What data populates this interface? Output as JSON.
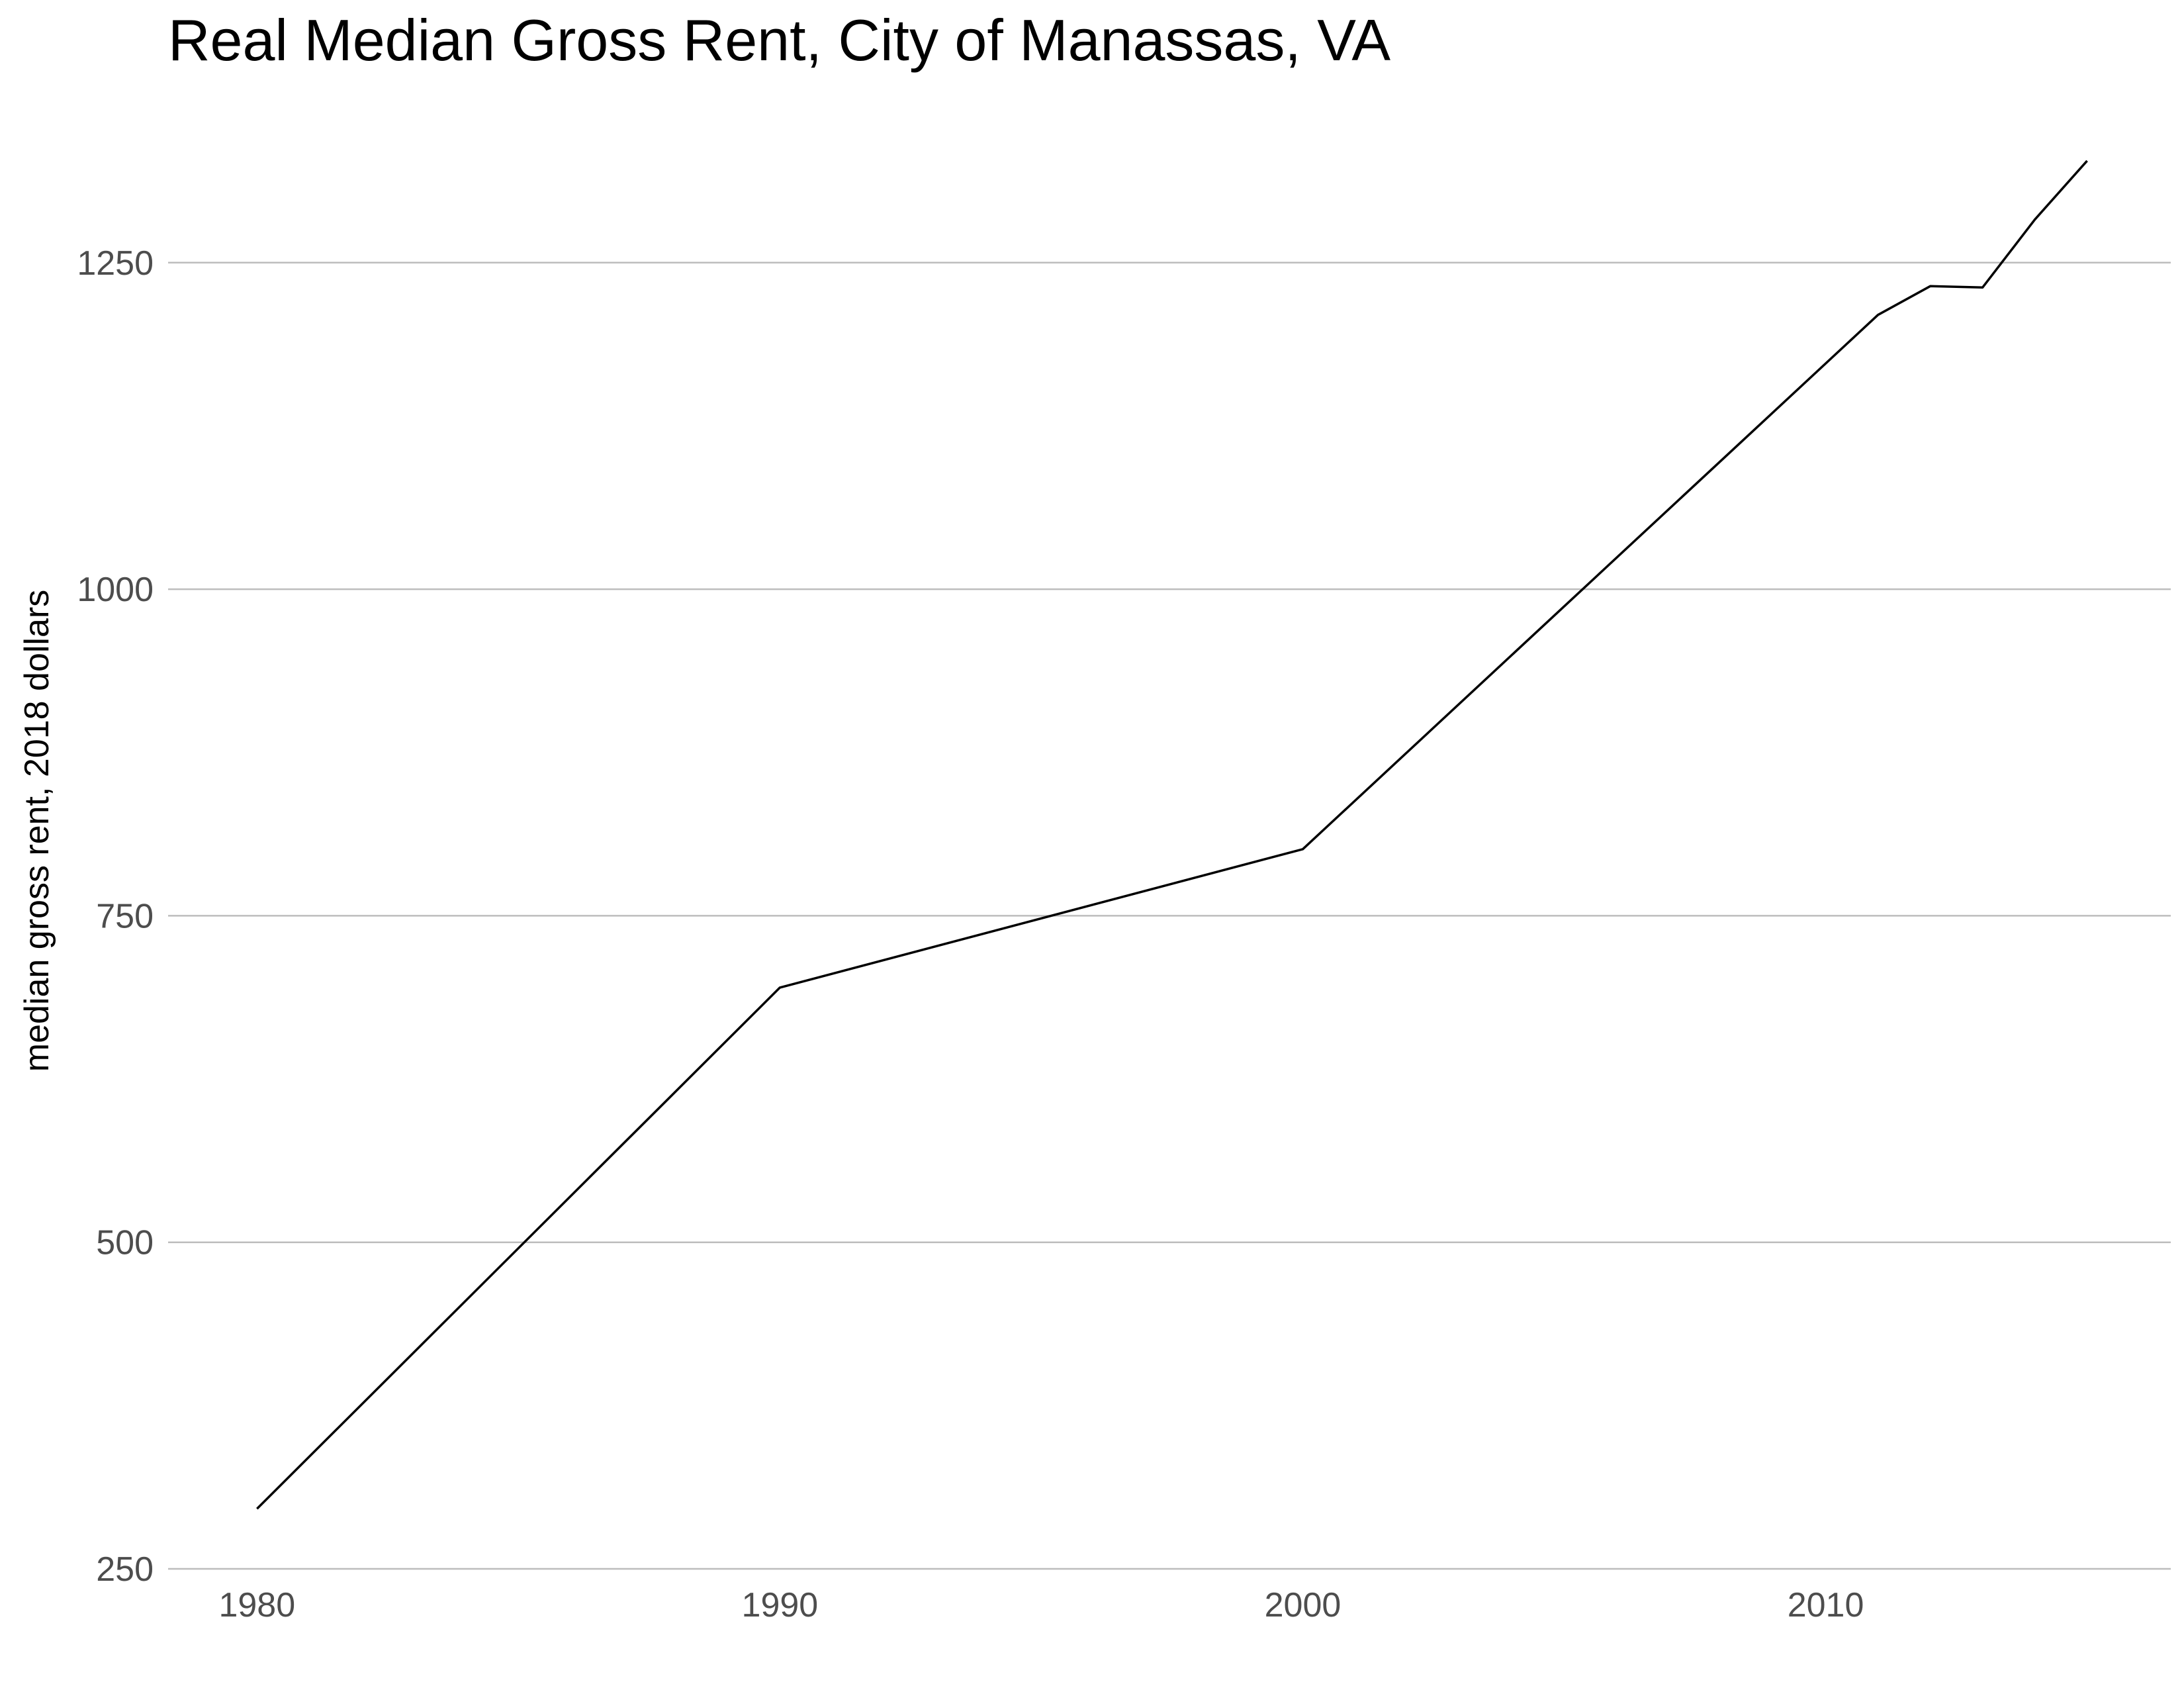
{
  "chart_data": {
    "type": "line",
    "title": "Real Median Gross Rent, City of Manassas, VA",
    "xlabel": "",
    "ylabel": "median gross rent, 2018 dollars",
    "x_ticks": [
      1980,
      1990,
      2000,
      2010
    ],
    "y_ticks": [
      250,
      500,
      750,
      1000,
      1250
    ],
    "xlim": [
      1978.3,
      2016.6
    ],
    "ylim": [
      250,
      1332
    ],
    "grid": "horizontal major only",
    "legend": "none",
    "series": [
      {
        "color": "#000000",
        "x": [
          1980,
          1990,
          2000,
          2011,
          2012,
          2013,
          2014,
          2015
        ],
        "y": [
          296,
          695,
          801,
          1210,
          1232,
          1231,
          1283,
          1328
        ]
      }
    ]
  }
}
